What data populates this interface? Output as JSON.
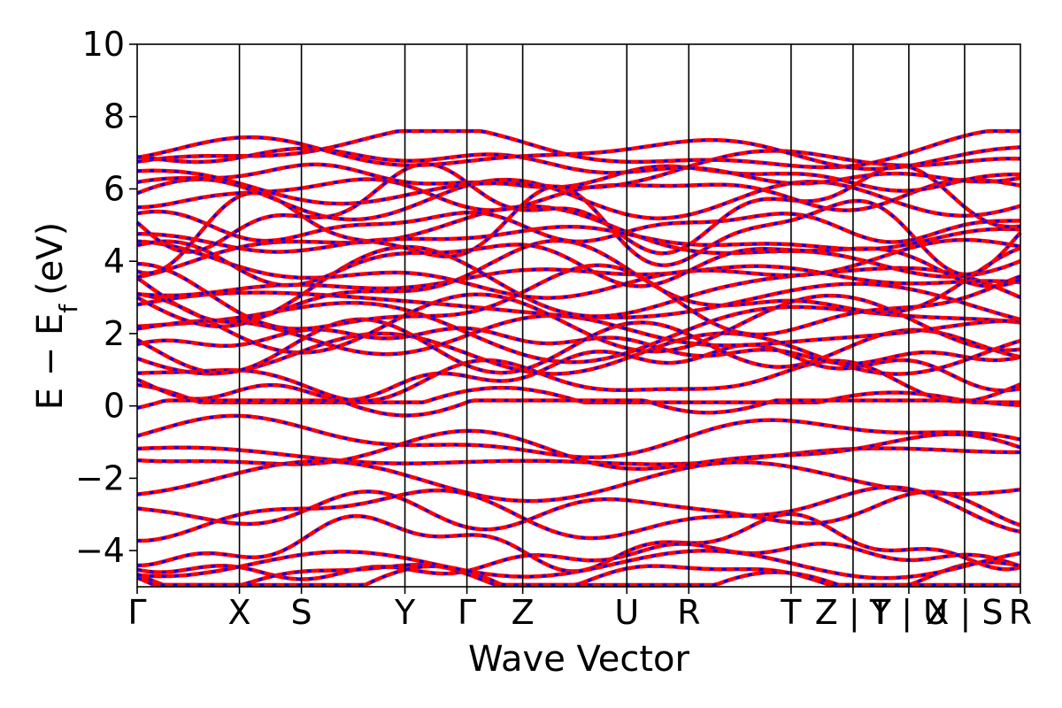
{
  "chart_data": {
    "type": "line",
    "title": "",
    "xlabel": "Wave Vector",
    "ylabel": "E − E",
    "ylabel_subscript": "f",
    "ylabel_unit": "(eV)",
    "ylim": [
      -5,
      10
    ],
    "yticks": [
      -4,
      -2,
      0,
      2,
      4,
      6,
      8,
      10
    ],
    "ytick_labels": [
      "−4",
      "−2",
      "0",
      "2",
      "4",
      "6",
      "8",
      "10"
    ],
    "xlim": [
      0,
      14.25
    ],
    "kpath_positions": [
      0,
      1.65,
      2.65,
      4.32,
      5.32,
      6.22,
      7.9,
      8.9,
      10.55,
      11.55,
      12.45,
      13.35,
      14.25
    ],
    "kpath_labels": [
      "Γ",
      "X",
      "S",
      "Y",
      "Γ",
      "Z",
      "U",
      "R",
      "T",
      "Z | Y",
      "T | U",
      "X | S",
      "R"
    ],
    "colors": {
      "series_a": "#ff0000",
      "series_b": "#0000ff"
    },
    "bands_above_fermi_at_gamma": [
      0.5,
      0.6,
      0.9,
      1.3,
      1.6,
      1.9,
      2.1,
      2.3,
      2.6,
      2.8,
      3.0,
      3.2,
      3.4,
      3.6,
      3.8,
      4.0,
      4.3,
      4.5,
      4.7,
      5.0,
      5.3,
      5.6,
      5.8,
      6.1,
      6.4,
      6.6,
      6.8,
      7.0
    ],
    "bands_below_fermi_at_gamma": [
      0.1,
      -0.7,
      -1.2,
      -1.4,
      -2.3,
      -2.8,
      -3.5,
      -4.2,
      -4.4,
      -4.7,
      -4.8,
      -4.9
    ]
  }
}
